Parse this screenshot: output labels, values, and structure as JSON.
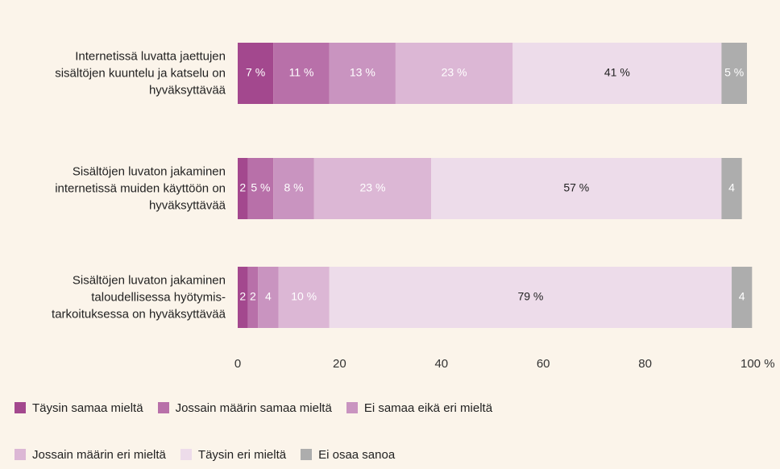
{
  "chart_data": {
    "type": "stacked-bar-horizontal",
    "categories": [
      "Internetissä luvatta jaettujen\nsisältöjen kuuntelu ja katselu on\nhyväksyttävää",
      "Sisältöjen luvaton jakaminen\ninternetissä muiden käyttöön on\nhyväksyttävää",
      "Sisältöjen luvaton jakaminen\ntaloudellisessa hyötymis-\ntarkoituksessa on hyväksyttävää"
    ],
    "series": [
      {
        "name": "Täysin samaa mieltä",
        "color": "#a3488e",
        "values": [
          7,
          2,
          2
        ],
        "value_labels": [
          "7 %",
          "2",
          "2"
        ]
      },
      {
        "name": "Jossain määrin samaa mieltä",
        "color": "#b870a9",
        "values": [
          11,
          5,
          2
        ],
        "value_labels": [
          "11 %",
          "5 %",
          "2"
        ]
      },
      {
        "name": "Ei samaa eikä eri mieltä",
        "color": "#c994c0",
        "values": [
          13,
          8,
          4
        ],
        "value_labels": [
          "13 %",
          "8 %",
          "4"
        ]
      },
      {
        "name": "Jossain määrin eri mieltä",
        "color": "#dcb7d5",
        "values": [
          23,
          23,
          10
        ],
        "value_labels": [
          "23 %",
          "23 %",
          "10 %"
        ]
      },
      {
        "name": "Täysin eri mieltä",
        "color": "#eddcea",
        "values": [
          41,
          57,
          79
        ],
        "value_labels": [
          "41 %",
          "57 %",
          "79 %"
        ]
      },
      {
        "name": "Ei osaa sanoa",
        "color": "#adadad",
        "values": [
          5,
          4,
          4
        ],
        "value_labels": [
          "5 %",
          "4",
          "4"
        ]
      }
    ],
    "xlim": [
      0,
      100
    ],
    "xticks": [
      0,
      20,
      40,
      60,
      80,
      {
        "value": 100,
        "label": "100 %"
      }
    ]
  }
}
